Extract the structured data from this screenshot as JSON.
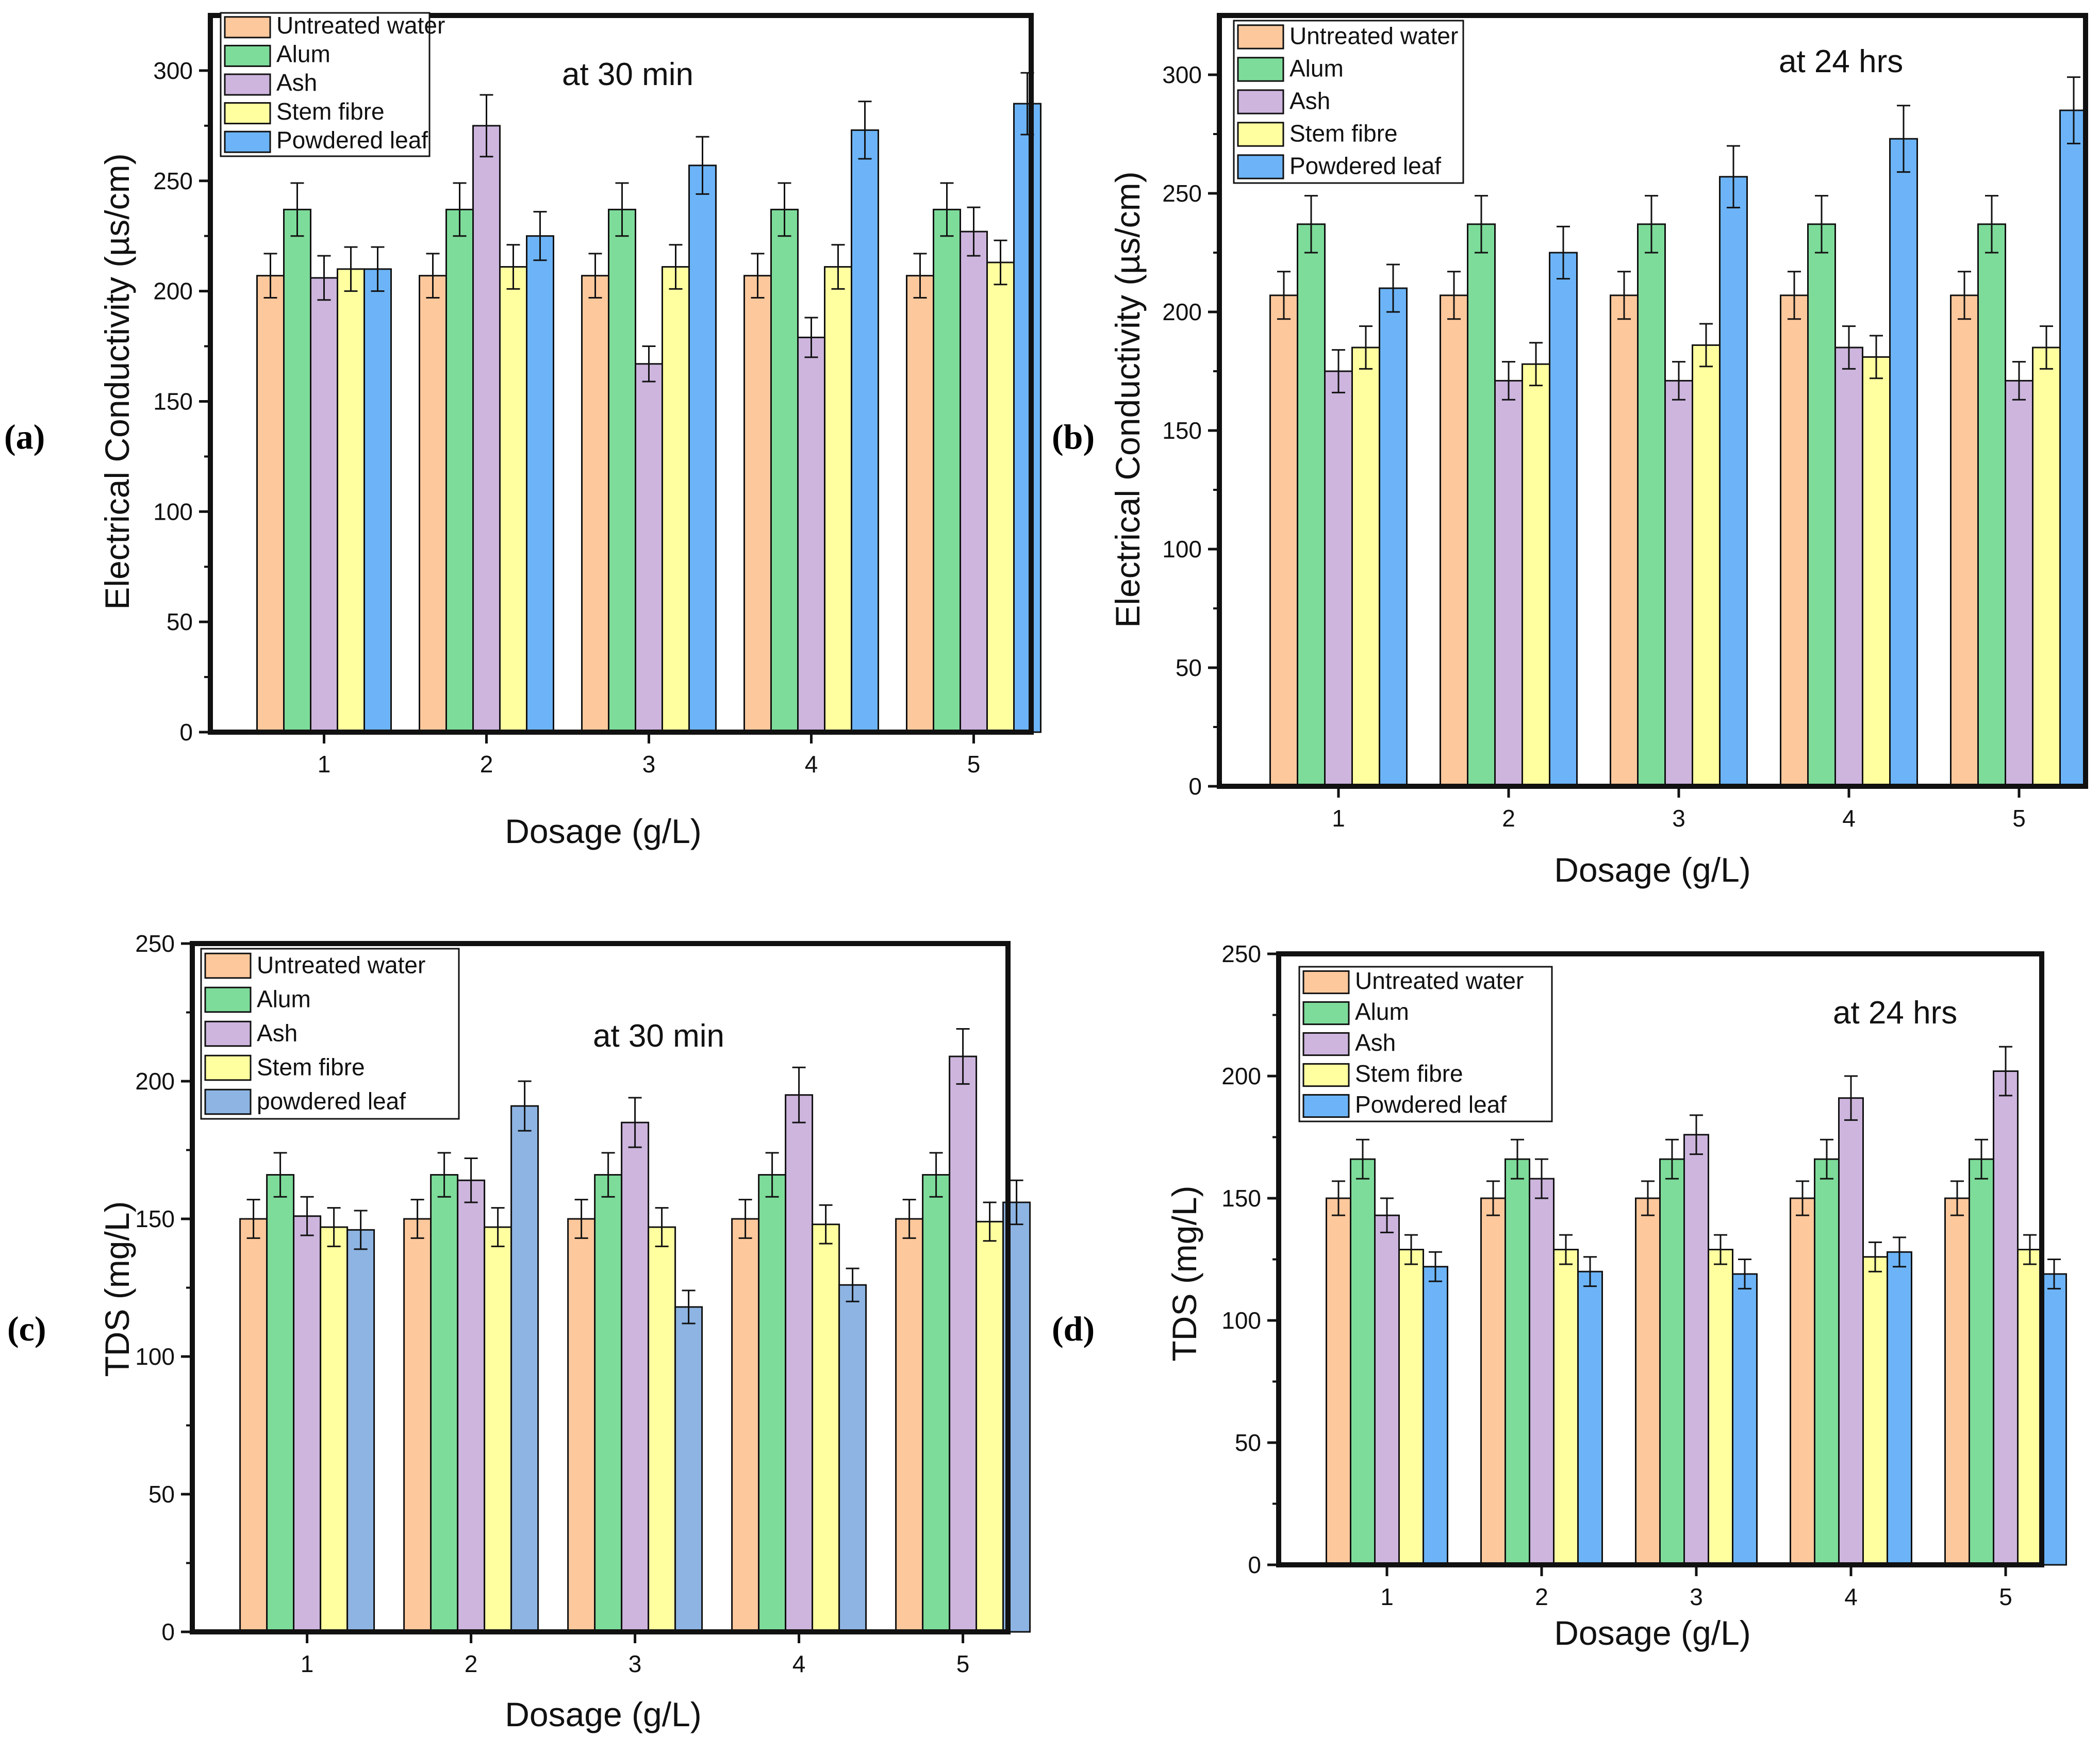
{
  "chart_data": [
    {
      "id": "a",
      "type": "bar",
      "panel_label": "(a)",
      "annotation": "at 30 min",
      "xlabel": "Dosage (g/L)",
      "ylabel": "Electrical Conductivity (µs/cm)",
      "categories": [
        "1",
        "2",
        "3",
        "4",
        "5"
      ],
      "ylim": [
        0,
        325
      ],
      "yticks": [
        0,
        50,
        100,
        150,
        200,
        250,
        300
      ],
      "legend_position": "top-left",
      "series": [
        {
          "name": "Untreated water",
          "color": "#FDC89C",
          "values": [
            207,
            207,
            207,
            207,
            207
          ],
          "errors": [
            10,
            10,
            10,
            10,
            10
          ]
        },
        {
          "name": "Alum",
          "color": "#7DDC9A",
          "values": [
            237,
            237,
            237,
            237,
            237
          ],
          "errors": [
            12,
            12,
            12,
            12,
            12
          ]
        },
        {
          "name": "Ash",
          "color": "#CDB5DE",
          "values": [
            206,
            275,
            167,
            179,
            227
          ],
          "errors": [
            10,
            14,
            8,
            9,
            11
          ]
        },
        {
          "name": "Stem fibre",
          "color": "#FFFFA0",
          "values": [
            210,
            211,
            211,
            211,
            213
          ],
          "errors": [
            10,
            10,
            10,
            10,
            10
          ]
        },
        {
          "name": "Powdered leaf",
          "color": "#6CB4F7",
          "values": [
            210,
            225,
            257,
            273,
            285
          ],
          "errors": [
            10,
            11,
            13,
            13,
            14
          ]
        }
      ]
    },
    {
      "id": "b",
      "type": "bar",
      "panel_label": "(b)",
      "annotation": "at 24 hrs",
      "xlabel": "Dosage (g/L)",
      "ylabel": "Electrical Conductivity (µs/cm)",
      "categories": [
        "1",
        "2",
        "3",
        "4",
        "5"
      ],
      "ylim": [
        0,
        325
      ],
      "yticks": [
        0,
        50,
        100,
        150,
        200,
        250,
        300
      ],
      "legend_position": "top-left",
      "series": [
        {
          "name": "Untreated water",
          "color": "#FDC89C",
          "values": [
            207,
            207,
            207,
            207,
            207
          ],
          "errors": [
            10,
            10,
            10,
            10,
            10
          ]
        },
        {
          "name": "Alum",
          "color": "#7DDC9A",
          "values": [
            237,
            237,
            237,
            237,
            237
          ],
          "errors": [
            12,
            12,
            12,
            12,
            12
          ]
        },
        {
          "name": "Ash",
          "color": "#CDB5DE",
          "values": [
            175,
            171,
            171,
            185,
            171
          ],
          "errors": [
            9,
            8,
            8,
            9,
            8
          ]
        },
        {
          "name": "Stem fibre",
          "color": "#FFFFA0",
          "values": [
            185,
            178,
            186,
            181,
            185
          ],
          "errors": [
            9,
            9,
            9,
            9,
            9
          ]
        },
        {
          "name": "Powdered leaf",
          "color": "#6CB4F7",
          "values": [
            210,
            225,
            257,
            273,
            285
          ],
          "errors": [
            10,
            11,
            13,
            14,
            14
          ]
        }
      ]
    },
    {
      "id": "c",
      "type": "bar",
      "panel_label": "(c)",
      "annotation": "at 30 min",
      "xlabel": "Dosage (g/L)",
      "ylabel": "TDS (mg/L)",
      "categories": [
        "1",
        "2",
        "3",
        "4",
        "5"
      ],
      "ylim": [
        0,
        250
      ],
      "yticks": [
        0,
        50,
        100,
        150,
        200,
        250
      ],
      "legend_position": "top-left",
      "series": [
        {
          "name": "Untreated water",
          "color": "#FDC89C",
          "values": [
            150,
            150,
            150,
            150,
            150
          ],
          "errors": [
            7,
            7,
            7,
            7,
            7
          ]
        },
        {
          "name": "Alum",
          "color": "#7DDC9A",
          "values": [
            166,
            166,
            166,
            166,
            166
          ],
          "errors": [
            8,
            8,
            8,
            8,
            8
          ]
        },
        {
          "name": "Ash",
          "color": "#CDB5DE",
          "values": [
            151,
            164,
            185,
            195,
            209
          ],
          "errors": [
            7,
            8,
            9,
            10,
            10
          ]
        },
        {
          "name": "Stem fibre",
          "color": "#FFFFA0",
          "values": [
            147,
            147,
            147,
            148,
            149
          ],
          "errors": [
            7,
            7,
            7,
            7,
            7
          ]
        },
        {
          "name": "powdered leaf",
          "color": "#8DB4E2",
          "values": [
            146,
            191,
            118,
            126,
            156
          ],
          "errors": [
            7,
            9,
            6,
            6,
            8
          ]
        }
      ]
    },
    {
      "id": "d",
      "type": "bar",
      "panel_label": "(d)",
      "annotation": "at 24 hrs",
      "xlabel": "Dosage (g/L)",
      "ylabel": "TDS (mg/L)",
      "categories": [
        "1",
        "2",
        "3",
        "4",
        "5"
      ],
      "ylim": [
        0,
        250
      ],
      "yticks": [
        0,
        50,
        100,
        150,
        200,
        250
      ],
      "legend_position": "top-left",
      "series": [
        {
          "name": "Untreated water",
          "color": "#FDC89C",
          "values": [
            150,
            150,
            150,
            150,
            150
          ],
          "errors": [
            7,
            7,
            7,
            7,
            7
          ]
        },
        {
          "name": "Alum",
          "color": "#7DDC9A",
          "values": [
            166,
            166,
            166,
            166,
            166
          ],
          "errors": [
            8,
            8,
            8,
            8,
            8
          ]
        },
        {
          "name": "Ash",
          "color": "#CDB5DE",
          "values": [
            143,
            158,
            176,
            191,
            202
          ],
          "errors": [
            7,
            8,
            8,
            9,
            10
          ]
        },
        {
          "name": "Stem fibre",
          "color": "#FFFFA0",
          "values": [
            129,
            129,
            129,
            126,
            129
          ],
          "errors": [
            6,
            6,
            6,
            6,
            6
          ]
        },
        {
          "name": "Powdered leaf",
          "color": "#6CB4F7",
          "values": [
            122,
            120,
            119,
            128,
            119
          ],
          "errors": [
            6,
            6,
            6,
            6,
            6
          ]
        }
      ]
    }
  ]
}
